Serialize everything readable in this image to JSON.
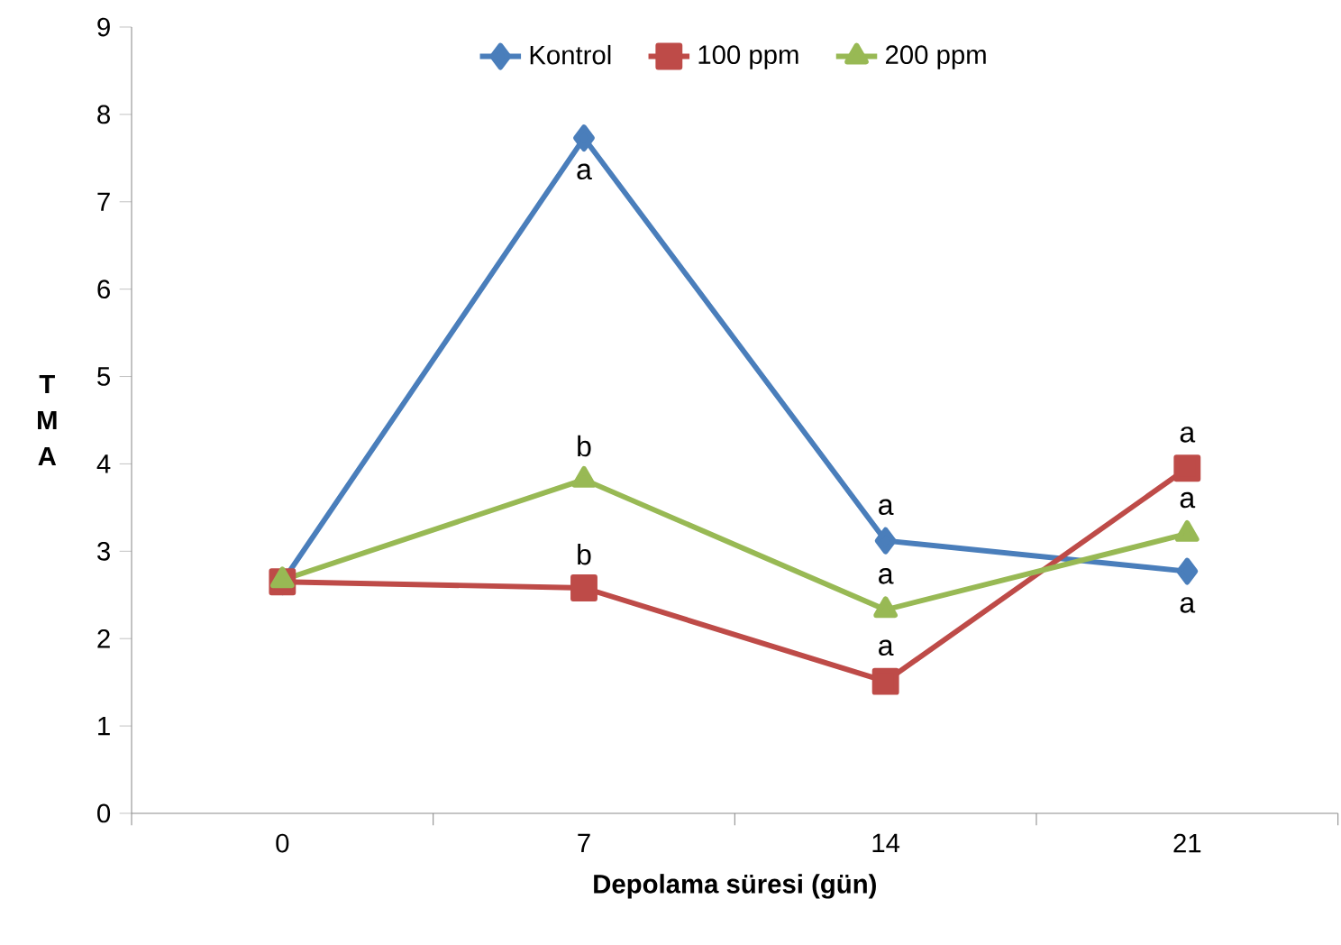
{
  "chart_data": {
    "type": "line",
    "xlabel": "Depolama süresi (gün)",
    "ylabel": "T M A",
    "categories": [
      "0",
      "7",
      "14",
      "21"
    ],
    "series": [
      {
        "name": "Kontrol",
        "color": "#4a7ebb",
        "marker": "diamond",
        "values": [
          2.65,
          7.73,
          3.12,
          2.77
        ]
      },
      {
        "name": "100 ppm",
        "color": "#be4b48",
        "marker": "square",
        "values": [
          2.65,
          2.58,
          1.51,
          3.95
        ]
      },
      {
        "name": "200 ppm",
        "color": "#98b954",
        "marker": "triangle",
        "values": [
          2.67,
          3.82,
          2.33,
          3.2
        ]
      }
    ],
    "ylim": [
      0,
      9
    ],
    "yticks": [
      0,
      1,
      2,
      3,
      4,
      5,
      6,
      7,
      8,
      9
    ],
    "legend": "top",
    "grid": false,
    "annotations": [
      {
        "text": "a",
        "x": "7",
        "y": 7.73
      },
      {
        "text": "b",
        "x": "7",
        "y": 3.82
      },
      {
        "text": "b",
        "x": "7",
        "y": 2.58
      },
      {
        "text": "a",
        "x": "14",
        "y": 3.12
      },
      {
        "text": "a",
        "x": "14",
        "y": 2.33
      },
      {
        "text": "a",
        "x": "14",
        "y": 1.51
      },
      {
        "text": "a",
        "x": "21",
        "y": 3.95
      },
      {
        "text": "a",
        "x": "21",
        "y": 3.2
      },
      {
        "text": "a",
        "x": "21",
        "y": 2.77
      }
    ]
  }
}
